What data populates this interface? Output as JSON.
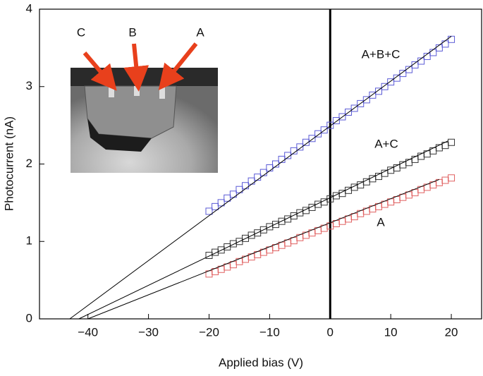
{
  "chart_data": {
    "type": "scatter",
    "x_label": "Applied bias (V)",
    "y_label": "Photocurrent (nA)",
    "xlim": [
      -48,
      25
    ],
    "ylim": [
      0,
      4
    ],
    "xticks": [
      {
        "value": -40,
        "label": "−40"
      },
      {
        "value": -30,
        "label": "−30"
      },
      {
        "value": -20,
        "label": "−20"
      },
      {
        "value": -10,
        "label": "−10"
      },
      0,
      10,
      20
    ],
    "yticks": [
      0,
      1,
      2,
      3,
      4
    ],
    "vline": 0,
    "x": [
      -20,
      -19,
      -18,
      -17,
      -16,
      -15,
      -14,
      -13,
      -12,
      -11,
      -10,
      -9,
      -8,
      -7,
      -6,
      -5,
      -4,
      -3,
      -2,
      -1,
      0,
      1,
      2,
      3,
      4,
      5,
      6,
      7,
      8,
      9,
      10,
      11,
      12,
      13,
      14,
      15,
      16,
      17,
      18,
      19,
      20
    ],
    "series": [
      {
        "name": "A+B+C",
        "color": "#5a5ad6",
        "values": [
          1.39,
          1.45,
          1.5,
          1.56,
          1.61,
          1.67,
          1.72,
          1.78,
          1.83,
          1.89,
          1.95,
          2.0,
          2.06,
          2.11,
          2.17,
          2.22,
          2.28,
          2.33,
          2.39,
          2.44,
          2.5,
          2.56,
          2.61,
          2.67,
          2.72,
          2.78,
          2.83,
          2.89,
          2.94,
          3.0,
          3.06,
          3.11,
          3.17,
          3.22,
          3.28,
          3.33,
          3.39,
          3.44,
          3.5,
          3.55,
          3.61
        ]
      },
      {
        "name": "A+C",
        "color": "#333333",
        "values": [
          0.82,
          0.86,
          0.89,
          0.93,
          0.97,
          1.0,
          1.04,
          1.08,
          1.11,
          1.15,
          1.19,
          1.22,
          1.26,
          1.29,
          1.33,
          1.37,
          1.4,
          1.44,
          1.48,
          1.51,
          1.55,
          1.59,
          1.62,
          1.66,
          1.7,
          1.73,
          1.77,
          1.81,
          1.84,
          1.88,
          1.92,
          1.95,
          1.99,
          2.02,
          2.06,
          2.1,
          2.13,
          2.17,
          2.21,
          2.24,
          2.28
        ]
      },
      {
        "name": "A",
        "color": "#e06060",
        "values": [
          0.58,
          0.61,
          0.64,
          0.67,
          0.7,
          0.74,
          0.77,
          0.8,
          0.83,
          0.86,
          0.89,
          0.92,
          0.95,
          0.98,
          1.01,
          1.05,
          1.08,
          1.11,
          1.14,
          1.17,
          1.2,
          1.23,
          1.26,
          1.29,
          1.32,
          1.36,
          1.39,
          1.42,
          1.45,
          1.48,
          1.51,
          1.54,
          1.57,
          1.6,
          1.63,
          1.67,
          1.7,
          1.73,
          1.76,
          1.79,
          1.82
        ]
      }
    ],
    "fit_lines": [
      {
        "x": [
          -43,
          20
        ],
        "values": [
          0,
          3.65
        ]
      },
      {
        "x": [
          -41.5,
          19.5
        ],
        "values": [
          0,
          2.3
        ]
      },
      {
        "x": [
          -40,
          18
        ],
        "values": [
          0,
          1.8
        ]
      }
    ],
    "inset_labels": [
      "C",
      "B",
      "A"
    ]
  }
}
